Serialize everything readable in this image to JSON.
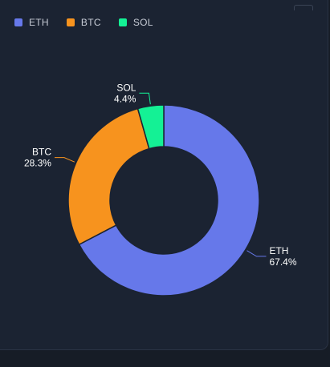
{
  "legend": [
    {
      "label": "ETH",
      "color": "#6678ea"
    },
    {
      "label": "BTC",
      "color": "#f7931e"
    },
    {
      "label": "SOL",
      "color": "#14f195"
    }
  ],
  "chart_data": {
    "type": "pie",
    "variant": "donut",
    "title": "",
    "legend_position": "top-left",
    "slices": [
      {
        "name": "ETH",
        "value": 67.4,
        "label": "67.4%",
        "color": "#6678ea"
      },
      {
        "name": "BTC",
        "value": 28.3,
        "label": "28.3%",
        "color": "#f7931e"
      },
      {
        "name": "SOL",
        "value": 4.4,
        "label": "4.4%",
        "color": "#14f195"
      }
    ]
  }
}
